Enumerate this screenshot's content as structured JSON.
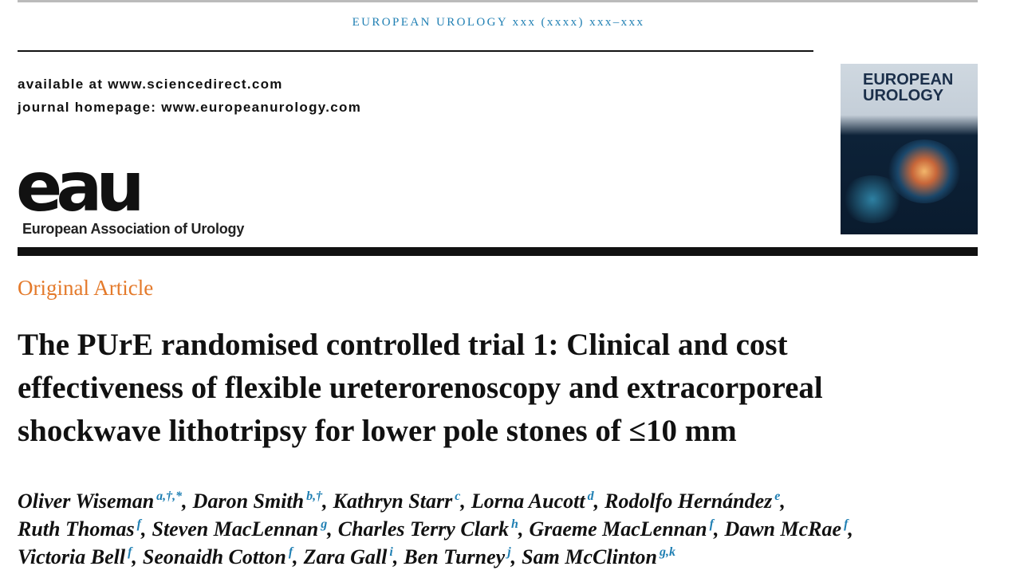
{
  "header": {
    "journal_line": "EUROPEAN UROLOGY xxx (xxxx) xxx–xxx",
    "available": "available at www.sciencedirect.com",
    "homepage": "journal homepage: www.europeanurology.com"
  },
  "logo": {
    "mark": "eau",
    "name": "European Association of Urology"
  },
  "cover": {
    "title": [
      "EUROPEAN",
      "UROLOGY"
    ]
  },
  "article": {
    "section": "Original Article",
    "title_lines": [
      "The PUrE randomised controlled trial 1: Clinical and cost",
      "effectiveness of flexible ureterorenoscopy and extracorporeal",
      "shockwave lithotripsy for lower pole stones of ≤10 mm"
    ],
    "author_lines": [
      [
        {
          "name": "Oliver Wiseman",
          "sup": "a,†,*",
          "sep": ","
        },
        {
          "name": "Daron Smith",
          "sup": "b,†",
          "sep": ","
        },
        {
          "name": "Kathryn Starr",
          "sup": "c",
          "sep": ","
        },
        {
          "name": "Lorna Aucott",
          "sup": "d",
          "sep": ","
        },
        {
          "name": "Rodolfo Hernández",
          "sup": "e",
          "sep": ","
        }
      ],
      [
        {
          "name": "Ruth Thomas",
          "sup": "f",
          "sep": ","
        },
        {
          "name": "Steven MacLennan",
          "sup": "g",
          "sep": ","
        },
        {
          "name": "Charles Terry Clark",
          "sup": "h",
          "sep": ","
        },
        {
          "name": "Graeme MacLennan",
          "sup": "f",
          "sep": ","
        },
        {
          "name": "Dawn McRae",
          "sup": "f",
          "sep": ","
        }
      ],
      [
        {
          "name": "Victoria Bell",
          "sup": "f",
          "sep": ","
        },
        {
          "name": "Seonaidh Cotton",
          "sup": "f",
          "sep": ","
        },
        {
          "name": "Zara Gall",
          "sup": "i",
          "sep": ","
        },
        {
          "name": "Ben Turney",
          "sup": "j",
          "sep": ","
        },
        {
          "name": "Sam McClinton",
          "sup": "g,k"
        }
      ]
    ]
  }
}
